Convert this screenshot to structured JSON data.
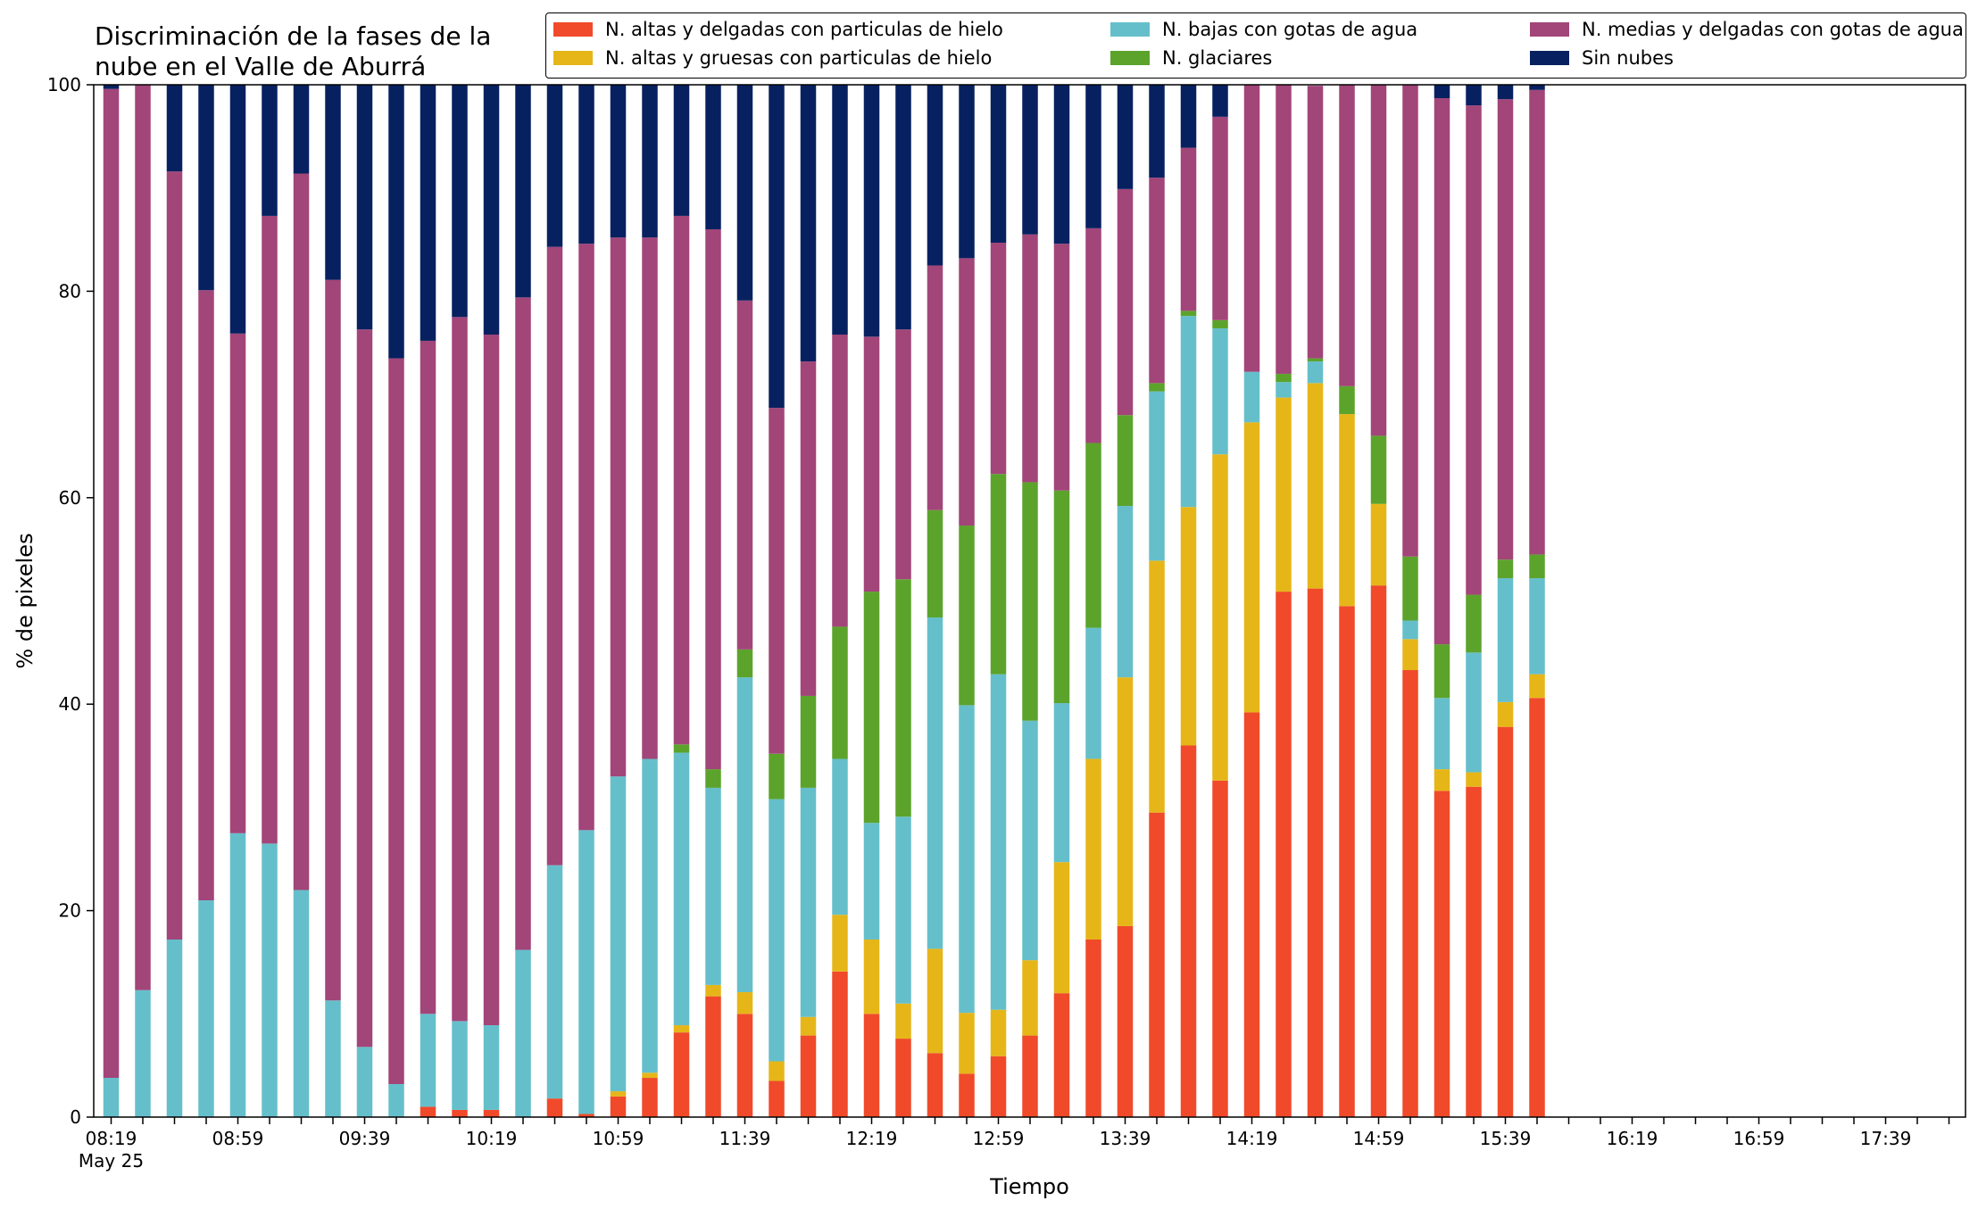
{
  "chart_data": {
    "type": "bar",
    "stacked": true,
    "title": "Discriminación de la fases de la\nnube en el Valle de Aburrá",
    "xlabel": "Tiempo",
    "ylabel": "% de pixeles",
    "ylim": [
      0,
      100
    ],
    "yticks": [
      0,
      20,
      40,
      60,
      80,
      100
    ],
    "x_start": "08:19",
    "x_step_minutes": 10,
    "x_tick_count": 59,
    "x_labels": [
      "08:19",
      "08:59",
      "09:39",
      "10:19",
      "10:59",
      "11:39",
      "12:19",
      "12:59",
      "13:39",
      "14:19",
      "14:59",
      "15:39",
      "16:19",
      "16:59",
      "17:39"
    ],
    "x_date_label": "May 25",
    "legend_placement": "top-right, 3 columns",
    "grid": false,
    "series": [
      {
        "name": "N. altas y delgadas con particulas de hielo",
        "color": "#F04A2A",
        "values": [
          0,
          0,
          0,
          0,
          0,
          0,
          0,
          0,
          0,
          0,
          1.0,
          0.7,
          0.7,
          0,
          1.8,
          0.3,
          2.0,
          3.8,
          8.2,
          11.7,
          10.0,
          3.5,
          7.9,
          14.1,
          10.0,
          7.6,
          6.2,
          4.2,
          5.9,
          7.9,
          12.0,
          17.2,
          18.5,
          29.5,
          36.0,
          32.6,
          39.2,
          50.9,
          51.2,
          49.5,
          51.5,
          43.3,
          31.6,
          32.0,
          37.8,
          40.6
        ]
      },
      {
        "name": "N. altas y gruesas con particulas de hielo",
        "color": "#E6B619",
        "values": [
          0,
          0,
          0,
          0,
          0,
          0,
          0,
          0,
          0,
          0,
          0,
          0,
          0,
          0,
          0,
          0,
          0.5,
          0.5,
          0.7,
          1.1,
          2.1,
          1.9,
          1.8,
          5.5,
          7.2,
          3.4,
          10.1,
          5.9,
          4.5,
          7.3,
          12.7,
          17.5,
          24.1,
          24.4,
          23.1,
          31.6,
          28.1,
          18.8,
          19.9,
          18.6,
          7.9,
          3.0,
          2.1,
          1.4,
          2.4,
          2.3
        ]
      },
      {
        "name": "N. bajas con gotas de agua",
        "color": "#65BFCB",
        "values": [
          3.8,
          12.3,
          17.2,
          21.0,
          27.5,
          26.5,
          22.0,
          11.3,
          6.8,
          3.2,
          9.0,
          8.6,
          8.2,
          16.2,
          22.6,
          27.5,
          30.5,
          30.4,
          26.4,
          19.1,
          30.5,
          25.4,
          22.2,
          15.1,
          11.3,
          18.1,
          32.1,
          29.8,
          32.5,
          23.2,
          15.4,
          12.7,
          16.6,
          16.4,
          18.5,
          12.2,
          4.9,
          1.5,
          2.1,
          0,
          0,
          1.8,
          6.9,
          11.6,
          12.0,
          9.3
        ]
      },
      {
        "name": "N. glaciares",
        "color": "#5CA32C",
        "values": [
          0,
          0,
          0,
          0,
          0,
          0,
          0,
          0,
          0,
          0,
          0,
          0,
          0,
          0,
          0,
          0,
          0,
          0,
          0.8,
          1.8,
          2.7,
          4.4,
          8.9,
          12.8,
          22.4,
          23.0,
          10.4,
          17.4,
          19.4,
          23.1,
          20.6,
          17.9,
          8.8,
          0.8,
          0.5,
          0.8,
          0,
          0.8,
          0.3,
          2.7,
          6.6,
          6.2,
          5.2,
          5.6,
          1.8,
          2.3
        ]
      },
      {
        "name": "N. medias y delgadas con gotas de agua",
        "color": "#A24579",
        "values": [
          95.8,
          87.7,
          74.4,
          59.1,
          48.4,
          60.8,
          69.4,
          69.8,
          69.5,
          70.3,
          65.2,
          68.2,
          66.9,
          63.2,
          59.9,
          56.8,
          52.2,
          50.5,
          51.2,
          52.3,
          33.8,
          33.5,
          32.4,
          28.3,
          24.7,
          24.2,
          23.7,
          25.9,
          22.4,
          24.0,
          23.9,
          20.8,
          21.9,
          19.9,
          15.8,
          19.7,
          27.8,
          28.0,
          26.4,
          29.2,
          34.0,
          45.7,
          52.9,
          47.4,
          44.6,
          45.0
        ]
      },
      {
        "name": "Sin nubes",
        "color": "#072160",
        "values": [
          0.4,
          0,
          8.4,
          19.9,
          24.1,
          12.7,
          8.6,
          18.9,
          23.7,
          26.5,
          24.8,
          22.5,
          24.2,
          20.6,
          15.7,
          15.4,
          14.8,
          14.8,
          12.7,
          14.0,
          20.9,
          31.3,
          26.8,
          24.2,
          24.4,
          23.7,
          17.5,
          16.8,
          15.3,
          14.5,
          15.4,
          13.9,
          10.1,
          9.0,
          6.1,
          3.1,
          0,
          0,
          0,
          0,
          0,
          0,
          1.3,
          2.0,
          1.4,
          0.5
        ]
      }
    ]
  }
}
